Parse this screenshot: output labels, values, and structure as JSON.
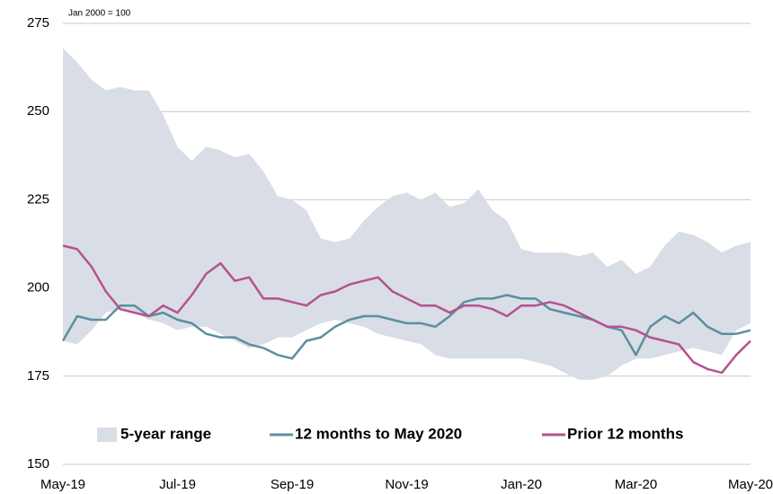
{
  "chart_data": {
    "type": "line",
    "annotation": "Jan 2000 = 100",
    "x": [
      0,
      0.25,
      0.5,
      0.75,
      1,
      1.25,
      1.5,
      1.75,
      2,
      2.25,
      2.5,
      2.75,
      3,
      3.25,
      3.5,
      3.75,
      4,
      4.25,
      4.5,
      4.75,
      5,
      5.25,
      5.5,
      5.75,
      6,
      6.25,
      6.5,
      6.75,
      7,
      7.25,
      7.5,
      7.75,
      8,
      8.25,
      8.5,
      8.75,
      9,
      9.25,
      9.5,
      9.75,
      10,
      10.25,
      10.5,
      10.75,
      11,
      11.25,
      11.5,
      11.75,
      12
    ],
    "xlim": [
      0,
      12
    ],
    "xticks": [
      {
        "value": 0,
        "label": "May-19"
      },
      {
        "value": 2,
        "label": "Jul-19"
      },
      {
        "value": 4,
        "label": "Sep-19"
      },
      {
        "value": 6,
        "label": "Nov-19"
      },
      {
        "value": 8,
        "label": "Jan-20"
      },
      {
        "value": 10,
        "label": "Mar-20"
      },
      {
        "value": 12,
        "label": "May-20"
      }
    ],
    "ylim": [
      150,
      275
    ],
    "yticks": [
      150,
      175,
      200,
      225,
      250,
      275
    ],
    "grid": true,
    "series": [
      {
        "name": "5-year range",
        "type": "range",
        "color": "#d9dde6",
        "high": [
          268,
          264,
          259,
          256,
          257,
          256,
          256,
          249,
          240,
          236,
          240,
          239,
          237,
          238,
          233,
          226,
          225,
          222,
          214,
          213,
          214,
          219,
          223,
          226,
          227,
          225,
          227,
          223,
          224,
          228,
          222,
          219,
          211,
          210,
          210,
          210,
          209,
          210,
          206,
          208,
          204,
          206,
          212,
          216,
          215,
          213,
          210,
          212,
          213
        ],
        "low": [
          185,
          184,
          188,
          193,
          194,
          193,
          191,
          190,
          188,
          189,
          189,
          187,
          185,
          183,
          184,
          186,
          186,
          188,
          190,
          191,
          190,
          189,
          187,
          186,
          185,
          184,
          181,
          180,
          180,
          180,
          180,
          180,
          180,
          179,
          178,
          176,
          174,
          174,
          175,
          178,
          180,
          180,
          181,
          182,
          183,
          182,
          181,
          188,
          190
        ]
      },
      {
        "name": "12 months to May 2020",
        "color": "#5b8fa0",
        "values": [
          185,
          192,
          191,
          191,
          195,
          195,
          192,
          193,
          191,
          190,
          187,
          186,
          186,
          184,
          183,
          181,
          180,
          185,
          186,
          189,
          191,
          192,
          192,
          191,
          190,
          190,
          189,
          192,
          196,
          197,
          197,
          198,
          197,
          197,
          194,
          193,
          192,
          191,
          189,
          188,
          181,
          189,
          192,
          190,
          193,
          189,
          187,
          187,
          188
        ]
      },
      {
        "name": "Prior 12 months",
        "color": "#b5528f",
        "values": [
          212,
          211,
          206,
          199,
          194,
          193,
          192,
          195,
          193,
          198,
          204,
          207,
          202,
          203,
          197,
          197,
          196,
          195,
          198,
          199,
          201,
          202,
          203,
          199,
          197,
          195,
          195,
          193,
          195,
          195,
          194,
          192,
          195,
          195,
          196,
          195,
          193,
          191,
          189,
          189,
          188,
          186,
          185,
          184,
          179,
          177,
          176,
          181,
          185
        ]
      }
    ]
  }
}
